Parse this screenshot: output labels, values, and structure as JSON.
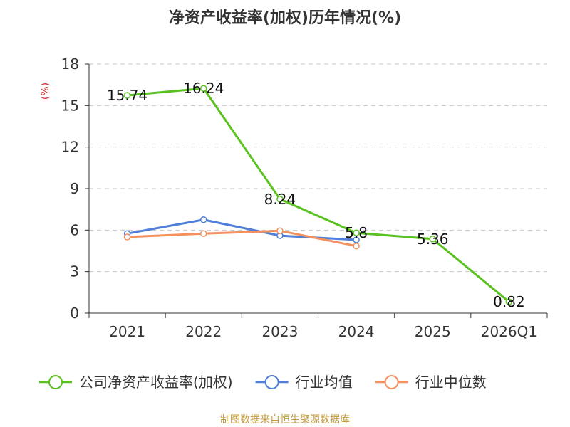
{
  "chart_data": {
    "type": "line",
    "title": "净资产收益率(加权)历年情况(%)",
    "ylabel": "(%)",
    "xlabel": "",
    "categories": [
      "2021",
      "2022",
      "2023",
      "2024",
      "2025",
      "2026Q1"
    ],
    "ylim": [
      0,
      18
    ],
    "yticks": [
      0,
      3,
      6,
      9,
      12,
      15,
      18
    ],
    "grid": true,
    "legend_position": "bottom",
    "series": [
      {
        "name": "公司净资产收益率(加权)",
        "color": "#5ac21f",
        "values": [
          15.74,
          16.24,
          8.24,
          5.8,
          5.36,
          0.82
        ],
        "labels": [
          "15.74",
          "16.24",
          "8.24",
          "5.8",
          "5.36",
          "0.82"
        ]
      },
      {
        "name": "行业均值",
        "color": "#4f7fd8",
        "values": [
          5.75,
          6.75,
          5.6,
          5.3,
          null,
          null
        ],
        "labels": []
      },
      {
        "name": "行业中位数",
        "color": "#f4915e",
        "values": [
          5.5,
          5.75,
          5.95,
          4.85,
          null,
          null
        ],
        "labels": []
      }
    ]
  },
  "footer": "制图数据来自恒生聚源数据库"
}
